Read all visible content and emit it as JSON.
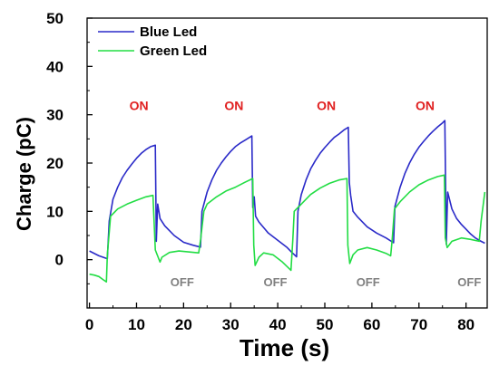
{
  "chart_data": {
    "type": "line",
    "xlabel": "Time (s)",
    "ylabel": "Charge (pC)",
    "xlim": [
      -0.5,
      84.5
    ],
    "ylim": [
      -10,
      50
    ],
    "x_ticks": [
      "0",
      "10",
      "20",
      "30",
      "40",
      "50",
      "60",
      "70",
      "80"
    ],
    "y_ticks": [
      "0",
      "10",
      "20",
      "30",
      "40",
      "50"
    ],
    "legend_position": "top-left",
    "grid": false,
    "series": [
      {
        "name": "Blue Led",
        "color": "#2a2ac8",
        "points": [
          [
            0,
            1.8
          ],
          [
            2,
            0.8
          ],
          [
            3.8,
            0.2
          ],
          [
            4.2,
            8
          ],
          [
            5,
            12.5
          ],
          [
            6,
            15
          ],
          [
            7,
            17
          ],
          [
            8,
            18.5
          ],
          [
            9,
            19.8
          ],
          [
            10,
            21
          ],
          [
            11,
            22
          ],
          [
            12,
            22.8
          ],
          [
            13,
            23.4
          ],
          [
            14,
            23.7
          ],
          [
            14.2,
            3.8
          ],
          [
            14.5,
            11.5
          ],
          [
            15,
            8.5
          ],
          [
            16,
            7
          ],
          [
            18,
            5
          ],
          [
            20,
            3.6
          ],
          [
            22,
            3
          ],
          [
            23.6,
            2.6
          ],
          [
            23.9,
            10
          ],
          [
            25,
            14
          ],
          [
            26,
            16.5
          ],
          [
            27,
            18.5
          ],
          [
            28,
            20
          ],
          [
            29,
            21.3
          ],
          [
            30,
            22.4
          ],
          [
            31,
            23.4
          ],
          [
            32,
            24.1
          ],
          [
            33,
            24.7
          ],
          [
            34,
            25.3
          ],
          [
            34.5,
            25.6
          ],
          [
            34.7,
            10.8
          ],
          [
            35,
            13
          ],
          [
            35.3,
            9
          ],
          [
            36,
            7.8
          ],
          [
            38,
            5.5
          ],
          [
            40,
            4
          ],
          [
            42,
            2.5
          ],
          [
            43,
            1.5
          ],
          [
            44,
            0.6
          ],
          [
            44.3,
            10
          ],
          [
            45,
            13.5
          ],
          [
            46,
            16.5
          ],
          [
            47,
            18.8
          ],
          [
            48,
            20.5
          ],
          [
            49,
            22
          ],
          [
            50,
            23.2
          ],
          [
            51,
            24.3
          ],
          [
            52,
            25.3
          ],
          [
            53,
            26
          ],
          [
            54,
            26.8
          ],
          [
            55,
            27.4
          ],
          [
            55.2,
            16
          ],
          [
            55.5,
            13.3
          ],
          [
            56,
            10
          ],
          [
            57,
            8.8
          ],
          [
            59,
            6.8
          ],
          [
            61,
            5.5
          ],
          [
            63,
            4.5
          ],
          [
            64.6,
            3.5
          ],
          [
            64.9,
            11
          ],
          [
            66,
            15
          ],
          [
            67,
            17.8
          ],
          [
            68,
            20
          ],
          [
            69,
            21.8
          ],
          [
            70,
            23.3
          ],
          [
            71,
            24.5
          ],
          [
            72,
            25.6
          ],
          [
            73,
            26.6
          ],
          [
            74,
            27.5
          ],
          [
            75,
            28.3
          ],
          [
            75.5,
            28.8
          ],
          [
            75.8,
            3.2
          ],
          [
            76.1,
            14
          ],
          [
            77,
            10.5
          ],
          [
            78,
            8.5
          ],
          [
            79,
            7.3
          ],
          [
            80,
            6.3
          ],
          [
            81,
            5.3
          ],
          [
            82,
            4.5
          ],
          [
            83,
            3.9
          ],
          [
            84,
            3.4
          ]
        ]
      },
      {
        "name": "Green Led",
        "color": "#22dd44",
        "points": [
          [
            0,
            -3
          ],
          [
            1,
            -3.2
          ],
          [
            2,
            -3.5
          ],
          [
            3,
            -4.2
          ],
          [
            3.6,
            -4.6
          ],
          [
            3.8,
            1
          ],
          [
            4.5,
            9
          ],
          [
            6,
            10.5
          ],
          [
            8,
            11.5
          ],
          [
            10,
            12.3
          ],
          [
            12,
            13
          ],
          [
            13.5,
            13.3
          ],
          [
            14,
            2
          ],
          [
            15,
            -0.5
          ],
          [
            15.4,
            0.5
          ],
          [
            17,
            1.5
          ],
          [
            19,
            1.8
          ],
          [
            21,
            1.6
          ],
          [
            23.2,
            1.4
          ],
          [
            23.6,
            4
          ],
          [
            24.3,
            10
          ],
          [
            25,
            11.5
          ],
          [
            27,
            13
          ],
          [
            29,
            14.2
          ],
          [
            31,
            15
          ],
          [
            33,
            16
          ],
          [
            34.7,
            16.8
          ],
          [
            34.9,
            3
          ],
          [
            35.2,
            -1.2
          ],
          [
            36,
            0.5
          ],
          [
            37,
            1.4
          ],
          [
            39,
            1
          ],
          [
            41,
            -0.5
          ],
          [
            42.8,
            -2.2
          ],
          [
            43.2,
            4
          ],
          [
            43.5,
            10
          ],
          [
            45,
            11.5
          ],
          [
            47,
            13.5
          ],
          [
            49,
            14.8
          ],
          [
            51,
            15.8
          ],
          [
            53,
            16.5
          ],
          [
            54.7,
            16.8
          ],
          [
            54.9,
            3
          ],
          [
            55.3,
            -0.8
          ],
          [
            56,
            1
          ],
          [
            57,
            2
          ],
          [
            59,
            2.5
          ],
          [
            61,
            2
          ],
          [
            63,
            1.3
          ],
          [
            64,
            0.8
          ],
          [
            64.3,
            4
          ],
          [
            64.8,
            10.5
          ],
          [
            66,
            12
          ],
          [
            68,
            14
          ],
          [
            70,
            15.5
          ],
          [
            72,
            16.5
          ],
          [
            74,
            17.2
          ],
          [
            75.4,
            17.5
          ],
          [
            75.6,
            4.5
          ],
          [
            76,
            2.5
          ],
          [
            77,
            3.8
          ],
          [
            79,
            4.5
          ],
          [
            81,
            4.2
          ],
          [
            82.8,
            3.8
          ],
          [
            83.2,
            8
          ],
          [
            84,
            14
          ]
        ]
      }
    ],
    "annotations": [
      {
        "text": "ON",
        "x": 10.5,
        "y": 31,
        "color": "#e02020",
        "kind": "on"
      },
      {
        "text": "ON",
        "x": 30.7,
        "y": 31,
        "color": "#e02020",
        "kind": "on"
      },
      {
        "text": "ON",
        "x": 50.3,
        "y": 31,
        "color": "#e02020",
        "kind": "on"
      },
      {
        "text": "ON",
        "x": 71.3,
        "y": 31,
        "color": "#e02020",
        "kind": "on"
      },
      {
        "text": "OFF",
        "x": 19.7,
        "y": -5.5,
        "color": "#808080",
        "kind": "off"
      },
      {
        "text": "OFF",
        "x": 39.5,
        "y": -5.5,
        "color": "#808080",
        "kind": "off"
      },
      {
        "text": "OFF",
        "x": 59.2,
        "y": -5.5,
        "color": "#808080",
        "kind": "off"
      },
      {
        "text": "OFF",
        "x": 80.7,
        "y": -5.5,
        "color": "#808080",
        "kind": "off"
      }
    ]
  }
}
